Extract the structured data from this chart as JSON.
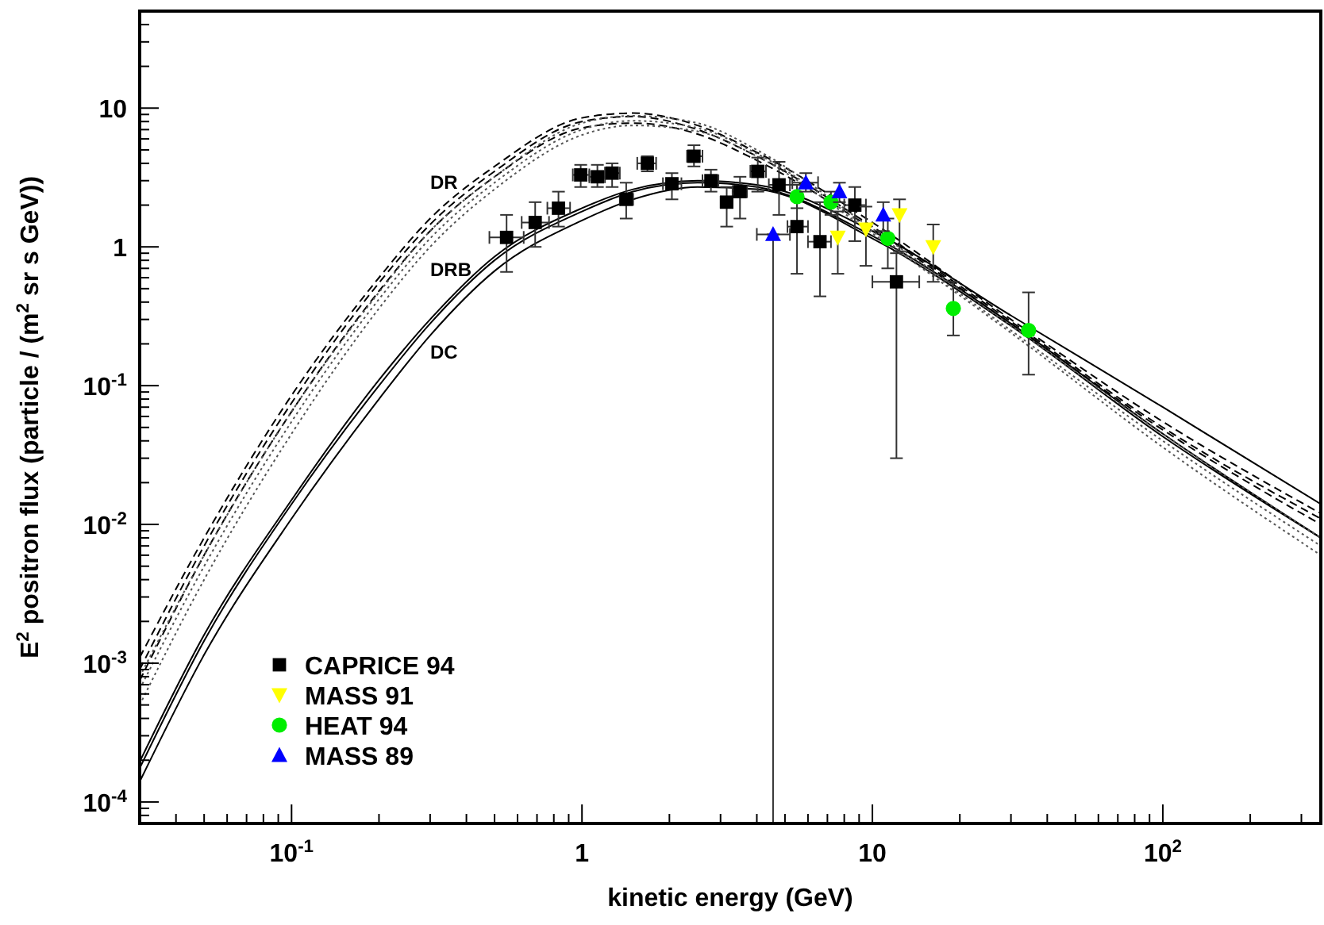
{
  "chart_data": {
    "type": "scatter",
    "xlabel": "kinetic energy (GeV)",
    "ylabel": "E$^{2}$ positron flux (particle / (m$^{2}$ sr s GeV))",
    "log": "xy",
    "grid": false,
    "legend": "bottom left",
    "xlim": [
      0.03,
      350
    ],
    "ylim": [
      7e-05,
      50
    ],
    "xticks": [
      {
        "value": 0.03,
        "label": null
      },
      {
        "value": 0.04,
        "label": null
      },
      {
        "value": 0.05,
        "label": null
      },
      {
        "value": 0.06,
        "label": null
      },
      {
        "value": 0.07,
        "label": null
      },
      {
        "value": 0.08,
        "label": null
      },
      {
        "value": 0.09,
        "label": null
      },
      {
        "value": 0.1,
        "label": "10$^{-1}$"
      },
      {
        "value": 0.2,
        "label": null
      },
      {
        "value": 0.3,
        "label": null
      },
      {
        "value": 0.4,
        "label": null
      },
      {
        "value": 0.5,
        "label": null
      },
      {
        "value": 0.6,
        "label": null
      },
      {
        "value": 0.7,
        "label": null
      },
      {
        "value": 0.8,
        "label": null
      },
      {
        "value": 0.9,
        "label": null
      },
      1,
      {
        "value": 2,
        "label": null
      },
      {
        "value": 3,
        "label": null
      },
      {
        "value": 4,
        "label": null
      },
      {
        "value": 5,
        "label": null
      },
      {
        "value": 6,
        "label": null
      },
      {
        "value": 7,
        "label": null
      },
      {
        "value": 8,
        "label": null
      },
      {
        "value": 9,
        "label": null
      },
      10,
      {
        "value": 20,
        "label": null
      },
      {
        "value": 30,
        "label": null
      },
      {
        "value": 40,
        "label": null
      },
      {
        "value": 50,
        "label": null
      },
      {
        "value": 60,
        "label": null
      },
      {
        "value": 70,
        "label": null
      },
      {
        "value": 80,
        "label": null
      },
      {
        "value": 90,
        "label": null
      },
      {
        "value": 100,
        "label": "10$^{2}$"
      },
      {
        "value": 200,
        "label": null
      },
      {
        "value": 300,
        "label": null
      }
    ],
    "yticks": [
      {
        "value": 8e-05,
        "label": null
      },
      {
        "value": 9e-05,
        "label": null
      },
      {
        "value": 0.0001,
        "label": "10$^{-4}$"
      },
      {
        "value": 0.0002,
        "label": null
      },
      {
        "value": 0.0003,
        "label": null
      },
      {
        "value": 0.0004,
        "label": null
      },
      {
        "value": 0.0005,
        "label": null
      },
      {
        "value": 0.0006,
        "label": null
      },
      {
        "value": 0.0007,
        "label": null
      },
      {
        "value": 0.0008,
        "label": null
      },
      {
        "value": 0.0009,
        "label": null
      },
      {
        "value": 0.001,
        "label": "10$^{-3}$"
      },
      {
        "value": 0.002,
        "label": null
      },
      {
        "value": 0.003,
        "label": null
      },
      {
        "value": 0.004,
        "label": null
      },
      {
        "value": 0.005,
        "label": null
      },
      {
        "value": 0.006,
        "label": null
      },
      {
        "value": 0.007,
        "label": null
      },
      {
        "value": 0.008,
        "label": null
      },
      {
        "value": 0.009,
        "label": null
      },
      {
        "value": 0.01,
        "label": "10$^{-2}$"
      },
      {
        "value": 0.02,
        "label": null
      },
      {
        "value": 0.03,
        "label": null
      },
      {
        "value": 0.04,
        "label": null
      },
      {
        "value": 0.05,
        "label": null
      },
      {
        "value": 0.06,
        "label": null
      },
      {
        "value": 0.07,
        "label": null
      },
      {
        "value": 0.08,
        "label": null
      },
      {
        "value": 0.09,
        "label": null
      },
      {
        "value": 0.1,
        "label": "10$^{-1}$"
      },
      {
        "value": 0.2,
        "label": null
      },
      {
        "value": 0.3,
        "label": null
      },
      {
        "value": 0.4,
        "label": null
      },
      {
        "value": 0.5,
        "label": null
      },
      {
        "value": 0.6,
        "label": null
      },
      {
        "value": 0.7,
        "label": null
      },
      {
        "value": 0.8,
        "label": null
      },
      {
        "value": 0.9,
        "label": null
      },
      1,
      {
        "value": 2,
        "label": null
      },
      {
        "value": 3,
        "label": null
      },
      {
        "value": 4,
        "label": null
      },
      {
        "value": 5,
        "label": null
      },
      {
        "value": 6,
        "label": null
      },
      {
        "value": 7,
        "label": null
      },
      {
        "value": 8,
        "label": null
      },
      {
        "value": 9,
        "label": null
      },
      10,
      {
        "value": 20,
        "label": null
      },
      {
        "value": 30,
        "label": null
      },
      {
        "value": 40,
        "label": null
      },
      {
        "value": 50,
        "label": null
      }
    ],
    "annotations": [
      "DR",
      "DRB",
      "DC"
    ],
    "series": [
      {
        "type": "line",
        "color": "#000000",
        "line_style": "solid",
        "marker": "none",
        "x": [
          0.03,
          0.05,
          0.1,
          0.2,
          0.3,
          0.5,
          1,
          1.5,
          2.5,
          4,
          10,
          30,
          100,
          350
        ],
        "values": [
          0.000195,
          0.0016,
          0.015,
          0.11,
          0.3,
          0.85,
          1.9,
          2.6,
          3.0,
          2.8,
          1.3,
          0.32,
          0.07,
          0.014
        ]
      },
      {
        "type": "line",
        "color": "#000000",
        "line_style": "solid",
        "marker": "none",
        "x": [
          0.03,
          0.05,
          0.1,
          0.2,
          0.3,
          0.5,
          1,
          1.5,
          2.5,
          4,
          10,
          30,
          100,
          350
        ],
        "values": [
          0.000175,
          0.00145,
          0.014,
          0.1,
          0.28,
          0.8,
          1.8,
          2.5,
          2.9,
          2.7,
          1.2,
          0.28,
          0.045,
          0.008
        ]
      },
      {
        "type": "line",
        "color": "#000000",
        "line_style": "solid",
        "marker": "none",
        "x": [
          0.03,
          0.05,
          0.1,
          0.2,
          0.3,
          0.5,
          1,
          1.5,
          2.5,
          4,
          10,
          30,
          100,
          350
        ],
        "values": [
          0.00014,
          0.00115,
          0.011,
          0.08,
          0.23,
          0.67,
          1.55,
          2.2,
          2.7,
          2.6,
          1.15,
          0.27,
          0.043,
          0.008
        ]
      },
      {
        "type": "line",
        "color": "#000000",
        "line_style": "dashed",
        "marker": "none",
        "x": [
          0.03,
          0.05,
          0.1,
          0.2,
          0.3,
          0.5,
          1,
          1.5,
          2.5,
          4,
          10,
          30,
          100,
          350
        ],
        "values": [
          0.0011,
          0.008,
          0.085,
          0.6,
          1.6,
          3.8,
          8.5,
          9.2,
          7.5,
          4.8,
          1.5,
          0.3,
          0.055,
          0.012
        ]
      },
      {
        "type": "line",
        "color": "#000000",
        "line_style": "dashed",
        "marker": "none",
        "x": [
          0.03,
          0.05,
          0.1,
          0.2,
          0.3,
          0.5,
          1,
          1.5,
          2.5,
          4,
          10,
          30,
          100,
          350
        ],
        "values": [
          0.0009,
          0.007,
          0.075,
          0.55,
          1.45,
          3.5,
          8.0,
          8.7,
          7.0,
          4.5,
          1.4,
          0.29,
          0.05,
          0.011
        ]
      },
      {
        "type": "line",
        "color": "#000000",
        "line_style": "dashed",
        "marker": "none",
        "x": [
          0.03,
          0.05,
          0.1,
          0.2,
          0.3,
          0.5,
          1,
          1.5,
          2.5,
          4,
          10,
          30,
          100,
          350
        ],
        "values": [
          0.00075,
          0.006,
          0.065,
          0.48,
          1.3,
          3.2,
          7.2,
          7.8,
          6.5,
          4.2,
          1.35,
          0.28,
          0.048,
          0.01
        ]
      },
      {
        "type": "line",
        "color": "#555555",
        "line_style": "dotted",
        "marker": "none",
        "x": [
          0.03,
          0.05,
          0.1,
          0.2,
          0.3,
          0.5,
          1,
          1.5,
          2.5,
          4,
          10,
          30,
          100,
          350
        ],
        "values": [
          0.0008,
          0.006,
          0.065,
          0.47,
          1.3,
          3.2,
          7.8,
          8.8,
          7.8,
          5.0,
          1.35,
          0.27,
          0.045,
          0.008
        ]
      },
      {
        "type": "line",
        "color": "#555555",
        "line_style": "dotted",
        "marker": "none",
        "x": [
          0.03,
          0.05,
          0.1,
          0.2,
          0.3,
          0.5,
          1,
          1.5,
          2.5,
          4,
          10,
          30,
          100,
          350
        ],
        "values": [
          0.00065,
          0.005,
          0.055,
          0.42,
          1.15,
          2.9,
          7.0,
          8.1,
          7.2,
          4.7,
          1.3,
          0.25,
          0.04,
          0.007
        ]
      },
      {
        "type": "line",
        "color": "#555555",
        "line_style": "dotted",
        "marker": "none",
        "x": [
          0.03,
          0.05,
          0.1,
          0.2,
          0.3,
          0.5,
          1,
          1.5,
          2.5,
          4,
          10,
          30,
          100,
          350
        ],
        "values": [
          0.0005,
          0.004,
          0.045,
          0.36,
          1.0,
          2.6,
          6.4,
          7.5,
          6.8,
          4.5,
          1.25,
          0.24,
          0.036,
          0.006
        ]
      },
      {
        "name": "CAPRICE 94",
        "color": "#000000",
        "marker": "square",
        "x": [
          0.55,
          0.69,
          0.83,
          0.99,
          1.13,
          1.27,
          1.42,
          1.68,
          2.04,
          2.43,
          2.78,
          3.15,
          3.5,
          4.03,
          4.77,
          5.5,
          6.6,
          8.7,
          12.1
        ],
        "values": [
          1.17,
          1.5,
          1.9,
          3.3,
          3.2,
          3.4,
          2.2,
          4.0,
          2.85,
          4.5,
          3.0,
          2.1,
          2.5,
          3.5,
          2.8,
          1.4,
          1.09,
          2.0,
          0.56
        ],
        "errors": [
          [
            0.66,
            1.7
          ],
          [
            1.0,
            2.1
          ],
          [
            1.4,
            2.5
          ],
          [
            2.7,
            3.9
          ],
          [
            2.7,
            3.9
          ],
          [
            2.7,
            4.0
          ],
          [
            1.6,
            2.9
          ],
          [
            3.5,
            4.5
          ],
          [
            2.2,
            3.4
          ],
          [
            3.8,
            5.4
          ],
          [
            2.5,
            3.6
          ],
          [
            1.4,
            2.7
          ],
          [
            1.6,
            3.2
          ],
          [
            2.5,
            4.4
          ],
          [
            1.7,
            4.1
          ],
          [
            0.64,
            2.8
          ],
          [
            0.44,
            2.1
          ],
          [
            1.1,
            2.7
          ],
          [
            0.03,
            0.9
          ]
        ],
        "xerrors": [
          [
            0.48,
            0.63
          ],
          [
            0.62,
            0.77
          ],
          [
            0.76,
            0.91
          ],
          [
            0.93,
            1.06
          ],
          [
            1.06,
            1.2
          ],
          [
            1.2,
            1.35
          ],
          [
            1.35,
            1.5
          ],
          [
            1.55,
            1.8
          ],
          [
            1.9,
            2.2
          ],
          [
            2.3,
            2.6
          ],
          [
            2.6,
            2.95
          ],
          [
            3.0,
            3.3
          ],
          [
            3.3,
            3.7
          ],
          [
            3.8,
            4.3
          ],
          [
            4.4,
            5.2
          ],
          [
            5.1,
            6.0
          ],
          [
            6.0,
            7.2
          ],
          [
            8.0,
            9.5
          ],
          [
            10,
            14.5
          ]
        ]
      },
      {
        "name": "MASS 91",
        "color": "#ffff00",
        "marker": "triangle-down",
        "x": [
          7.6,
          9.5,
          12.4,
          16.2
        ],
        "values": [
          1.17,
          1.34,
          1.7,
          1.0
        ],
        "errors": [
          [
            0.64,
            1.8
          ],
          [
            0.73,
            1.95
          ],
          [
            0.93,
            2.2
          ],
          [
            0.56,
            1.45
          ]
        ]
      },
      {
        "name": "HEAT 94",
        "color": "#00ee00",
        "marker": "circle",
        "x": [
          5.5,
          7.2,
          11.3,
          19,
          34.5
        ],
        "values": [
          2.3,
          2.1,
          1.15,
          0.36,
          0.25
        ],
        "errors": [
          [
            1.9,
            2.8
          ],
          [
            1.7,
            2.5
          ],
          [
            0.7,
            1.6
          ],
          [
            0.23,
            0.56
          ],
          [
            0.12,
            0.47
          ]
        ]
      },
      {
        "name": "MASS 89",
        "color": "#0000ff",
        "marker": "triangle",
        "x": [
          4.55,
          5.9,
          7.7,
          10.9
        ],
        "values": [
          1.23,
          2.9,
          2.5,
          1.7
        ],
        "errors": [
          [
            7e-05,
            1.23
          ],
          [
            2.5,
            3.4
          ],
          [
            2.1,
            2.9
          ],
          [
            1.3,
            2.1
          ]
        ],
        "xerrors": [
          [
            4.0,
            5.2
          ],
          [
            5.3,
            6.5
          ],
          null,
          null
        ]
      }
    ]
  }
}
